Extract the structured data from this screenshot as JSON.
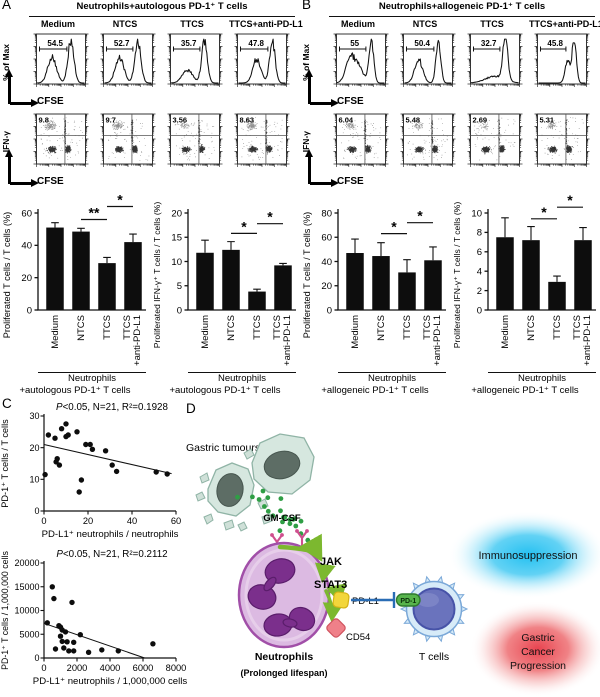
{
  "figure": {
    "panel_a": {
      "letter": "A",
      "title": "Neutrophils+autologous PD-1⁺ T cells",
      "conditions": [
        "Medium",
        "NTCS",
        "TTCS",
        "TTCS+anti-PD-L1"
      ],
      "hist_ylabel": "% of Max",
      "dot_ylabel": "IFN-γ",
      "xlabel": "CFSE"
    },
    "panel_b": {
      "letter": "B",
      "title": "Neutrophils+allogeneic PD-1⁺ T cells",
      "conditions": [
        "Medium",
        "NTCS",
        "TTCS",
        "TTCS+anti-PD-L1"
      ],
      "hist_ylabel": "% of Max",
      "dot_ylabel": "IFN-γ",
      "xlabel": "CFSE"
    },
    "panel_c": {
      "letter": "C"
    },
    "panel_d": {
      "letter": "D"
    }
  },
  "chart_data": [
    {
      "id": "flow_hist_A",
      "type": "line",
      "subtype": "flow_histograms",
      "panel": "A",
      "conditions": [
        "Medium",
        "NTCS",
        "TTCS",
        "TTCS+anti-PD-L1"
      ],
      "gate_percent": [
        54.5,
        52.7,
        35.7,
        47.8
      ],
      "xlabel": "CFSE",
      "ylabel": "% of Max",
      "xscale": "log 10^0 - 10^4",
      "peaks": [
        [
          [
            0.31,
            0.62,
            0.09
          ],
          [
            0.71,
            0.97,
            0.065
          ]
        ],
        [
          [
            0.32,
            0.6,
            0.09
          ],
          [
            0.71,
            0.95,
            0.065
          ]
        ],
        [
          [
            0.34,
            0.3,
            0.11
          ],
          [
            0.7,
            0.98,
            0.06
          ]
        ],
        [
          [
            0.39,
            0.56,
            0.085
          ],
          [
            0.72,
            0.95,
            0.06
          ]
        ]
      ],
      "gate_end": [
        0.62,
        0.6,
        0.6,
        0.62
      ]
    },
    {
      "id": "flow_dots_A",
      "type": "scatter",
      "subtype": "flow_dotplots",
      "panel": "A",
      "quadrant_percent": [
        9.8,
        9.7,
        3.56,
        8.63
      ],
      "xlabel": "CFSE",
      "ylabel": "IFN-γ"
    },
    {
      "id": "flow_hist_B",
      "type": "line",
      "subtype": "flow_histograms",
      "panel": "B",
      "conditions": [
        "Medium",
        "NTCS",
        "TTCS",
        "TTCS+anti-PD-L1"
      ],
      "gate_percent": [
        55,
        50.4,
        32.7,
        45.8
      ],
      "xlabel": "CFSE",
      "ylabel": "% of Max",
      "xscale": "log 10^0 - 10^4",
      "peaks": [
        [
          [
            0.28,
            0.6,
            0.1
          ],
          [
            0.47,
            0.3,
            0.09
          ],
          [
            0.72,
            1.0,
            0.05
          ]
        ],
        [
          [
            0.3,
            0.55,
            0.085
          ],
          [
            0.72,
            1.0,
            0.05
          ]
        ],
        [
          [
            0.5,
            0.16,
            0.2
          ],
          [
            0.72,
            1.0,
            0.05
          ]
        ],
        [
          [
            0.62,
            0.52,
            0.055
          ],
          [
            0.76,
            0.95,
            0.045
          ]
        ]
      ],
      "gate_end": [
        0.6,
        0.62,
        0.6,
        0.58
      ]
    },
    {
      "id": "flow_dots_B",
      "type": "scatter",
      "subtype": "flow_dotplots",
      "panel": "B",
      "quadrant_percent": [
        6.04,
        5.48,
        2.69,
        5.31
      ],
      "xlabel": "CFSE",
      "ylabel": "IFN-γ"
    },
    {
      "id": "bar_A_prolif",
      "type": "bar",
      "ylabel": "Proliferated T cells / T cells (%)",
      "categories": [
        "Medium",
        "NTCS",
        "TTCS",
        "TTCS\n+anti-PD-L1"
      ],
      "values": [
        51,
        48.5,
        29,
        42
      ],
      "errors": [
        3,
        2,
        3.5,
        5
      ],
      "ylim": [
        0,
        60
      ],
      "yticks": [
        0,
        20,
        40,
        60
      ],
      "significance": [
        {
          "from": 1,
          "to": 2,
          "label": "**",
          "y": 56
        },
        {
          "from": 2,
          "to": 3,
          "label": "*",
          "y": 64
        }
      ],
      "footer": [
        "Neutrophils",
        "+autologous PD-1⁺ T cells"
      ]
    },
    {
      "id": "bar_A_ifng",
      "type": "bar",
      "ylabel": "Proliferated IFN-γ⁺ T cells / T cells (%)",
      "categories": [
        "Medium",
        "NTCS",
        "TTCS",
        "TTCS\n+anti-PD-L1"
      ],
      "values": [
        11.8,
        12.4,
        3.8,
        9.2
      ],
      "errors": [
        2.6,
        1.7,
        0.5,
        0.4
      ],
      "ylim": [
        0,
        20
      ],
      "yticks": [
        0,
        5,
        10,
        15,
        20
      ],
      "significance": [
        {
          "from": 1,
          "to": 2,
          "label": "*",
          "y": 15.8
        },
        {
          "from": 2,
          "to": 3,
          "label": "*",
          "y": 17.8
        }
      ],
      "footer": [
        "Neutrophils",
        "+autologous PD-1⁺ T cells"
      ]
    },
    {
      "id": "bar_B_prolif",
      "type": "bar",
      "ylabel": "Proliferated T cells / T cells (%)",
      "categories": [
        "Medium",
        "NTCS",
        "TTCS",
        "TTCS\n+anti-PD-L1"
      ],
      "values": [
        47,
        44.5,
        31,
        41
      ],
      "errors": [
        11.5,
        11,
        10.5,
        11
      ],
      "ylim": [
        0,
        80
      ],
      "yticks": [
        0,
        20,
        40,
        60,
        80
      ],
      "significance": [
        {
          "from": 1,
          "to": 2,
          "label": "*",
          "y": 63
        },
        {
          "from": 2,
          "to": 3,
          "label": "*",
          "y": 72
        }
      ],
      "footer": [
        "Neutrophils",
        "+allogeneic PD-1⁺ T cells"
      ]
    },
    {
      "id": "bar_B_ifng",
      "type": "bar",
      "ylabel": "Proliferated IFN-γ⁺ T cells / T cells (%)",
      "categories": [
        "Medium",
        "NTCS",
        "TTCS",
        "TTCS\n+anti-PD-L1"
      ],
      "values": [
        7.5,
        7.2,
        2.9,
        7.2
      ],
      "errors": [
        2,
        1.4,
        0.6,
        1.3
      ],
      "ylim": [
        0,
        10
      ],
      "yticks": [
        0,
        2,
        4,
        6,
        8,
        10
      ],
      "significance": [
        {
          "from": 1,
          "to": 2,
          "label": "*",
          "y": 9.4
        },
        {
          "from": 2,
          "to": 3,
          "label": "*",
          "y": 10.6
        }
      ],
      "footer": [
        "Neutrophils",
        "+allogeneic PD-1⁺ T cells"
      ]
    },
    {
      "id": "scatter_pct",
      "type": "scatter",
      "title": "P<0.05, N=21, R²=0.1928",
      "xlabel": "PD-L1⁺ neutrophils / neutrophils",
      "ylabel": "PD-1⁺ T cells / T cells",
      "xlim": [
        0,
        60
      ],
      "xticks": [
        0,
        20,
        40,
        60
      ],
      "ylim": [
        0,
        30
      ],
      "yticks": [
        0,
        10,
        20,
        30
      ],
      "points": [
        [
          0.5,
          11.5
        ],
        [
          2,
          24
        ],
        [
          5,
          23
        ],
        [
          5.5,
          15.5
        ],
        [
          6,
          16.5
        ],
        [
          7,
          14.5
        ],
        [
          8,
          26
        ],
        [
          10,
          27.5
        ],
        [
          10,
          23.5
        ],
        [
          11,
          24
        ],
        [
          15,
          25
        ],
        [
          16,
          6
        ],
        [
          17,
          9.8
        ],
        [
          19,
          21
        ],
        [
          21,
          21
        ],
        [
          22,
          19.5
        ],
        [
          28,
          19
        ],
        [
          31,
          14.5
        ],
        [
          33,
          12.5
        ],
        [
          51,
          12.3
        ],
        [
          56,
          11.7
        ]
      ],
      "regression_line": [
        [
          0,
          21
        ],
        [
          58,
          11.8
        ]
      ]
    },
    {
      "id": "scatter_abs",
      "type": "scatter",
      "title": "P<0.05, N=21, R²=0.2112",
      "xlabel": "PD-L1⁺ neutrophils / 1,000,000 cells",
      "ylabel": "PD-1⁺ T cells / 1,000,000 cells",
      "xlim": [
        0,
        8000
      ],
      "xticks": [
        0,
        2000,
        4000,
        6000,
        8000
      ],
      "ylim": [
        0,
        20000
      ],
      "yticks": [
        0,
        5000,
        10000,
        15000,
        20000
      ],
      "points": [
        [
          200,
          7400
        ],
        [
          500,
          15000
        ],
        [
          600,
          12500
        ],
        [
          700,
          1900
        ],
        [
          900,
          6800
        ],
        [
          1000,
          6500
        ],
        [
          1000,
          4600
        ],
        [
          1100,
          5900
        ],
        [
          1100,
          3500
        ],
        [
          1200,
          2100
        ],
        [
          1300,
          5500
        ],
        [
          1400,
          3400
        ],
        [
          1500,
          1500
        ],
        [
          1700,
          11700
        ],
        [
          1800,
          3300
        ],
        [
          1800,
          1500
        ],
        [
          2200,
          4900
        ],
        [
          2700,
          1200
        ],
        [
          3500,
          1700
        ],
        [
          4500,
          1500
        ],
        [
          6600,
          3000
        ]
      ],
      "regression_line": [
        [
          0,
          7300
        ],
        [
          6100,
          0
        ]
      ]
    }
  ],
  "diagram": {
    "labels": {
      "gastric_tumours": "Gastric tumours",
      "gm_csf": "GM-CSF",
      "jak": "JAK",
      "stat3": "STAT3",
      "pd_l1": "PD-L1",
      "cd54": "CD54",
      "pd_1": "PD-1",
      "neutrophils": "Neutrophils",
      "prolonged": "(Prolonged lifespan)",
      "t_cells": "T cells",
      "immunosuppression": "Immunosuppression",
      "progression_lines": [
        "Gastric",
        "Cancer",
        "Progression"
      ]
    },
    "colors": {
      "tumour_fill": "#d6e7df",
      "tumour_stroke": "#90b4a6",
      "tumour_nucleus": "#5d6d65",
      "gmcsf_dot": "#2f9e45",
      "receptor_pink": "#cf4f8e",
      "neutrophil_fill": "#dcbae2",
      "neutrophil_stroke": "#a14fa8",
      "neutrophil_nucleus": "#7b2f8c",
      "arrow_green": "#7cb82f",
      "pd_l1_fill": "#f2d63b",
      "cd54_fill": "#ef8089",
      "pd1_fill": "#57b44b",
      "tcell_fill": "#d7ebf8",
      "tcell_stroke": "#7aa8d8",
      "tcell_nucleus": "#6a73bd",
      "inhibit_blue": "#2a6db5",
      "immuno_blue": "#1ebef0",
      "cancer_red": "#e63946"
    }
  }
}
